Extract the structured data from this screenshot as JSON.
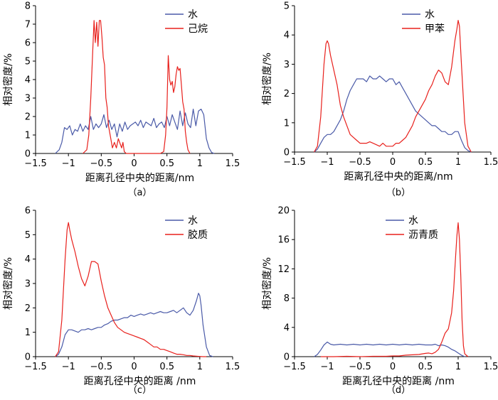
{
  "chart_data": [
    {
      "type": "line",
      "caption": "（a）",
      "xlabel": "距离孔径中央的距离/nm",
      "ylabel": "相对密度/%",
      "xlim": [
        -1.5,
        1.5
      ],
      "ylim": [
        0,
        8
      ],
      "xticks": [
        -1.5,
        -1,
        -0.5,
        0,
        0.5,
        1,
        1.5
      ],
      "xtick_labels": [
        "−1.5",
        "−1",
        "−0.5",
        "0",
        "0.5",
        "1",
        "1.5"
      ],
      "yticks": [
        0,
        1,
        2,
        3,
        4,
        5,
        6,
        7,
        8
      ],
      "ytick_labels": [
        "0",
        "1",
        "2",
        "3",
        "4",
        "5",
        "6",
        "7",
        "8"
      ],
      "legend": "top-right",
      "series": [
        {
          "name": "水",
          "color": "#4a5aa8",
          "x": [
            -1.2,
            -1.14,
            -1.1,
            -1.06,
            -1.02,
            -0.98,
            -0.94,
            -0.9,
            -0.86,
            -0.82,
            -0.78,
            -0.74,
            -0.7,
            -0.66,
            -0.62,
            -0.58,
            -0.54,
            -0.5,
            -0.46,
            -0.42,
            -0.38,
            -0.34,
            -0.3,
            -0.26,
            -0.22,
            -0.18,
            -0.14,
            -0.1,
            -0.06,
            -0.02,
            0.02,
            0.06,
            0.1,
            0.14,
            0.18,
            0.22,
            0.26,
            0.3,
            0.34,
            0.38,
            0.42,
            0.46,
            0.5,
            0.54,
            0.58,
            0.62,
            0.66,
            0.7,
            0.74,
            0.78,
            0.82,
            0.86,
            0.9,
            0.94,
            0.98,
            1.02,
            1.06,
            1.1,
            1.14,
            1.18,
            1.22
          ],
          "y": [
            0,
            0.2,
            0.6,
            1.4,
            1.3,
            1.5,
            1.0,
            1.3,
            1.2,
            1.6,
            1.2,
            1.5,
            1.3,
            2.0,
            1.3,
            1.6,
            1.4,
            1.6,
            2.1,
            1.4,
            1.8,
            1.3,
            1.6,
            0.9,
            1.6,
            1.2,
            1.7,
            1.3,
            1.5,
            1.6,
            1.7,
            1.5,
            1.8,
            1.4,
            1.7,
            1.6,
            1.5,
            1.9,
            1.4,
            1.6,
            1.7,
            1.4,
            2.0,
            1.5,
            2.1,
            1.7,
            1.3,
            2.3,
            1.5,
            2.2,
            1.6,
            1.4,
            2.4,
            1.5,
            2.3,
            2.4,
            2.1,
            0.8,
            0.3,
            0.05,
            0
          ]
        },
        {
          "name": "己烷",
          "color": "#e8201c",
          "x": [
            -0.78,
            -0.72,
            -0.69,
            -0.66,
            -0.63,
            -0.61,
            -0.59,
            -0.57,
            -0.55,
            -0.53,
            -0.51,
            -0.49,
            -0.47,
            -0.45,
            -0.43,
            -0.41,
            -0.39,
            -0.36,
            -0.33,
            -0.3,
            -0.27,
            -0.24,
            -0.21,
            -0.19,
            -0.17,
            -0.15,
            -0.12,
            0.4,
            0.45,
            0.48,
            0.5,
            0.52,
            0.54,
            0.56,
            0.58,
            0.6,
            0.62,
            0.64,
            0.66,
            0.68,
            0.7,
            0.72,
            0.74,
            0.76,
            0.78,
            0.8,
            0.82,
            0.85
          ],
          "y": [
            0,
            0.2,
            1.0,
            3.0,
            5.5,
            7.2,
            6.0,
            7.1,
            5.8,
            7.2,
            7.2,
            6.3,
            5.2,
            4.8,
            3.0,
            2.5,
            1.5,
            0.9,
            0.3,
            0.6,
            0.3,
            0.8,
            0.5,
            0.3,
            0.6,
            0.1,
            0,
            0,
            0.1,
            1.0,
            2.5,
            5.3,
            4.0,
            3.7,
            3.9,
            3.3,
            3.6,
            4.3,
            4.7,
            4.5,
            4.6,
            3.7,
            2.8,
            2.4,
            1.2,
            0.6,
            0.2,
            0
          ]
        }
      ]
    },
    {
      "type": "line",
      "caption": "（b）",
      "xlabel": "距离孔径中央的距离/nm",
      "ylabel": "相对密度/%",
      "xlim": [
        -1.5,
        1.5
      ],
      "ylim": [
        0,
        5
      ],
      "xticks": [
        -1.5,
        -1,
        -0.5,
        0,
        0.5,
        1,
        1.5
      ],
      "xtick_labels": [
        "−1.5",
        "−1",
        "−0.5",
        "0",
        "0.5",
        "1",
        "1.5"
      ],
      "yticks": [
        0,
        1,
        2,
        3,
        4,
        5
      ],
      "ytick_labels": [
        "0",
        "1",
        "2",
        "3",
        "4",
        "5"
      ],
      "legend": "top-right",
      "series": [
        {
          "name": "水",
          "color": "#4a5aa8",
          "x": [
            -1.2,
            -1.15,
            -1.1,
            -1.05,
            -1.0,
            -0.95,
            -0.9,
            -0.85,
            -0.8,
            -0.75,
            -0.7,
            -0.65,
            -0.6,
            -0.55,
            -0.5,
            -0.45,
            -0.4,
            -0.35,
            -0.3,
            -0.25,
            -0.2,
            -0.15,
            -0.1,
            -0.05,
            0,
            0.05,
            0.1,
            0.15,
            0.2,
            0.25,
            0.3,
            0.35,
            0.4,
            0.45,
            0.5,
            0.55,
            0.6,
            0.65,
            0.7,
            0.75,
            0.8,
            0.85,
            0.9,
            0.95,
            1.0,
            1.05,
            1.1,
            1.15,
            1.2
          ],
          "y": [
            0,
            0.1,
            0.3,
            0.5,
            0.6,
            0.6,
            0.7,
            0.9,
            1.1,
            1.4,
            1.8,
            2.1,
            2.3,
            2.5,
            2.5,
            2.5,
            2.4,
            2.6,
            2.5,
            2.5,
            2.6,
            2.5,
            2.4,
            2.5,
            2.5,
            2.3,
            2.4,
            2.2,
            2.0,
            1.8,
            1.6,
            1.4,
            1.3,
            1.2,
            1.1,
            1.0,
            0.9,
            0.9,
            0.8,
            0.7,
            0.7,
            0.6,
            0.6,
            0.7,
            0.7,
            0.4,
            0.15,
            0.05,
            0
          ]
        },
        {
          "name": "甲苯",
          "color": "#e8201c",
          "x": [
            -1.2,
            -1.15,
            -1.1,
            -1.05,
            -1.02,
            -1.0,
            -0.98,
            -0.95,
            -0.9,
            -0.85,
            -0.8,
            -0.75,
            -0.7,
            -0.65,
            -0.6,
            -0.55,
            -0.5,
            -0.45,
            -0.4,
            -0.35,
            -0.3,
            -0.25,
            -0.2,
            -0.15,
            -0.1,
            -0.05,
            0,
            0.05,
            0.1,
            0.15,
            0.2,
            0.25,
            0.3,
            0.35,
            0.4,
            0.45,
            0.5,
            0.55,
            0.6,
            0.65,
            0.7,
            0.75,
            0.8,
            0.85,
            0.9,
            0.95,
            0.98,
            1.0,
            1.02,
            1.05,
            1.1,
            1.15,
            1.2
          ],
          "y": [
            0,
            0.2,
            1.2,
            3.0,
            3.7,
            3.8,
            3.7,
            3.3,
            2.8,
            2.3,
            1.6,
            1.2,
            0.9,
            0.6,
            0.5,
            0.4,
            0.3,
            0.3,
            0.3,
            0.35,
            0.3,
            0.25,
            0.2,
            0.3,
            0.2,
            0.2,
            0.2,
            0.3,
            0.3,
            0.4,
            0.5,
            0.7,
            0.9,
            1.2,
            1.4,
            1.6,
            1.8,
            2.1,
            2.3,
            2.6,
            2.8,
            2.7,
            2.4,
            2.3,
            2.9,
            3.8,
            4.2,
            4.5,
            4.3,
            3.0,
            1.0,
            0.2,
            0
          ]
        }
      ]
    },
    {
      "type": "line",
      "caption": "（c）",
      "xlabel": "距离孔径中央的距离 /nm",
      "ylabel": "相对密度/%",
      "xlim": [
        -1.5,
        1.5
      ],
      "ylim": [
        0,
        6
      ],
      "xticks": [
        -1.5,
        -1,
        -0.5,
        0,
        0.5,
        1,
        1.5
      ],
      "xtick_labels": [
        "−1.5",
        "−1",
        "−0.5",
        "0",
        "0.5",
        "1",
        "1.5"
      ],
      "yticks": [
        0,
        1,
        2,
        3,
        4,
        5,
        6
      ],
      "ytick_labels": [
        "0",
        "1",
        "2",
        "3",
        "4",
        "5",
        "6"
      ],
      "legend": "top-right",
      "series": [
        {
          "name": "水",
          "color": "#4a5aa8",
          "x": [
            -1.2,
            -1.15,
            -1.1,
            -1.05,
            -1.0,
            -0.95,
            -0.9,
            -0.85,
            -0.8,
            -0.75,
            -0.7,
            -0.65,
            -0.6,
            -0.55,
            -0.5,
            -0.45,
            -0.4,
            -0.35,
            -0.3,
            -0.25,
            -0.2,
            -0.15,
            -0.1,
            -0.05,
            0,
            0.05,
            0.1,
            0.15,
            0.2,
            0.25,
            0.3,
            0.35,
            0.4,
            0.45,
            0.5,
            0.55,
            0.6,
            0.65,
            0.7,
            0.75,
            0.8,
            0.85,
            0.9,
            0.95,
            0.98,
            1.0,
            1.02,
            1.05,
            1.1,
            1.15,
            1.2
          ],
          "y": [
            0,
            0.1,
            0.4,
            0.9,
            1.1,
            1.1,
            1.05,
            1.0,
            1.1,
            1.1,
            1.15,
            1.1,
            1.15,
            1.2,
            1.2,
            1.3,
            1.35,
            1.45,
            1.5,
            1.5,
            1.55,
            1.6,
            1.6,
            1.7,
            1.65,
            1.7,
            1.75,
            1.7,
            1.75,
            1.8,
            1.75,
            1.8,
            1.85,
            1.8,
            1.8,
            1.85,
            1.9,
            1.8,
            1.9,
            2.0,
            1.8,
            1.7,
            1.9,
            2.3,
            2.6,
            2.5,
            2.1,
            1.3,
            0.4,
            0.05,
            0
          ]
        },
        {
          "name": "胶质",
          "color": "#e8201c",
          "x": [
            -1.2,
            -1.15,
            -1.1,
            -1.05,
            -1.02,
            -1.0,
            -0.98,
            -0.95,
            -0.9,
            -0.85,
            -0.8,
            -0.75,
            -0.7,
            -0.65,
            -0.6,
            -0.55,
            -0.5,
            -0.45,
            -0.4,
            -0.35,
            -0.3,
            -0.25,
            -0.2,
            -0.15,
            -0.1,
            -0.05,
            0,
            0.05,
            0.1,
            0.15,
            0.2,
            0.25,
            0.3,
            0.35,
            0.4,
            0.45,
            0.5,
            0.55,
            0.6,
            0.65,
            0.7,
            0.75,
            0.8,
            0.85,
            0.9,
            0.95,
            1.0,
            1.05,
            1.1
          ],
          "y": [
            0,
            0.2,
            1.5,
            4.0,
            5.2,
            5.5,
            5.2,
            4.8,
            4.3,
            3.7,
            3.2,
            2.9,
            3.3,
            3.9,
            3.9,
            3.8,
            3.1,
            2.5,
            2.0,
            1.7,
            1.4,
            1.2,
            1.1,
            1.0,
            0.95,
            0.9,
            0.85,
            0.8,
            0.75,
            0.7,
            0.6,
            0.5,
            0.4,
            0.4,
            0.3,
            0.3,
            0.25,
            0.2,
            0.15,
            0.1,
            0.1,
            0.08,
            0.05,
            0.05,
            0.03,
            0.02,
            0.01,
            0,
            0
          ]
        }
      ]
    },
    {
      "type": "line",
      "caption": "（d）",
      "xlabel": "距离孔径中央的距离 /nm",
      "ylabel": "相对密度/%",
      "xlim": [
        -1.5,
        1.5
      ],
      "ylim": [
        0,
        20
      ],
      "xticks": [
        -1.5,
        -1,
        -0.5,
        0,
        0.5,
        1,
        1.5
      ],
      "xtick_labels": [
        "−1.5",
        "−1",
        "−0.5",
        "0",
        "0.5",
        "1",
        "1.5"
      ],
      "yticks": [
        0,
        4,
        8,
        12,
        16,
        20
      ],
      "ytick_labels": [
        "0",
        "4",
        "8",
        "12",
        "16",
        "20"
      ],
      "legend": "top-right",
      "series": [
        {
          "name": "水",
          "color": "#4a5aa8",
          "x": [
            -1.2,
            -1.15,
            -1.1,
            -1.05,
            -1.0,
            -0.95,
            -0.9,
            -0.8,
            -0.7,
            -0.6,
            -0.5,
            -0.4,
            -0.3,
            -0.2,
            -0.1,
            0,
            0.1,
            0.2,
            0.3,
            0.4,
            0.5,
            0.6,
            0.65,
            0.7,
            0.75,
            0.8,
            0.85,
            0.9,
            0.95,
            1.0,
            1.05,
            1.1
          ],
          "y": [
            0,
            0.3,
            0.9,
            1.6,
            2.0,
            1.7,
            1.6,
            1.7,
            1.6,
            1.7,
            1.6,
            1.7,
            1.6,
            1.7,
            1.6,
            1.7,
            1.6,
            1.7,
            1.6,
            1.7,
            1.6,
            1.6,
            1.7,
            1.5,
            1.6,
            1.5,
            1.3,
            1.0,
            0.8,
            0.5,
            0.2,
            0
          ]
        },
        {
          "name": "沥青质",
          "color": "#e8201c",
          "x": [
            -1.1,
            -0.9,
            -0.7,
            -0.5,
            -0.3,
            -0.1,
            0,
            0.1,
            0.2,
            0.3,
            0.4,
            0.5,
            0.55,
            0.6,
            0.65,
            0.7,
            0.75,
            0.8,
            0.85,
            0.9,
            0.93,
            0.96,
            0.98,
            1.0,
            1.02,
            1.04,
            1.06,
            1.08,
            1.1,
            1.15
          ],
          "y": [
            0,
            0,
            0.05,
            0,
            0.05,
            0.05,
            0.1,
            0.1,
            0.2,
            0.25,
            0.3,
            0.45,
            0.5,
            0.4,
            0.6,
            1.0,
            2.0,
            3.2,
            3.8,
            6.0,
            9.0,
            13.5,
            16.5,
            18.3,
            16.0,
            11.0,
            5.0,
            1.5,
            0.4,
            0
          ]
        }
      ]
    }
  ]
}
